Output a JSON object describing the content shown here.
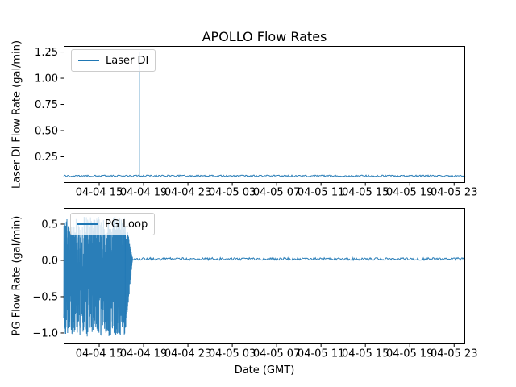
{
  "figure": {
    "line_color": "#1f77b4",
    "text_color": "#000000",
    "spine_color": "#000000",
    "legend_border_color": "#cccccc",
    "background_color": "#ffffff"
  },
  "chart_data": [
    {
      "type": "line",
      "title": "APOLLO Flow Rates",
      "ylabel": "Laser DI Flow Rate (gal/min)",
      "legend": {
        "label": "Laser DI",
        "location": "upper left"
      },
      "x_unit": "hours after 04-04 00:00 GMT",
      "xlim": [
        11.8,
        48.0
      ],
      "ylim": [
        0.0,
        1.308
      ],
      "grid": false,
      "xticks": {
        "values": [
          15,
          19,
          23,
          27,
          31,
          35,
          39,
          43,
          47
        ],
        "labels": [
          "04-04 15",
          "04-04 19",
          "04-04 23",
          "04-05 03",
          "04-05 07",
          "04-05 11",
          "04-05 15",
          "04-05 19",
          "04-05 23"
        ]
      },
      "yticks": {
        "values": [
          0.25,
          0.5,
          0.75,
          1.0,
          1.25
        ],
        "labels": [
          "0.25",
          "0.50",
          "0.75",
          "1.00",
          "1.25"
        ]
      },
      "series": [
        {
          "name": "Laser DI",
          "color": "#1f77b4",
          "description": "Constant baseline ~0.07 gal/min across the whole range with a single vertical spike to ~1.25 gal/min at about 04-04 18:40 GMT",
          "segments": [
            {
              "kind": "flat",
              "x_start": 11.8,
              "x_end": 48.0,
              "value": 0.068,
              "jitter": 0.008
            },
            {
              "kind": "spike",
              "x": 18.62,
              "base": 0.068,
              "peak": 1.25
            }
          ]
        }
      ]
    },
    {
      "type": "line",
      "ylabel": "PG Flow Rate (gal/min)",
      "xlabel": "Date (GMT)",
      "legend": {
        "label": "PG Loop",
        "location": "upper left"
      },
      "x_unit": "hours after 04-04 00:00 GMT",
      "xlim": [
        11.8,
        48.0
      ],
      "ylim": [
        -1.156,
        0.722
      ],
      "grid": false,
      "xticks": {
        "values": [
          15,
          19,
          23,
          27,
          31,
          35,
          39,
          43,
          47
        ],
        "labels": [
          "04-04 15",
          "04-04 19",
          "04-04 23",
          "04-05 03",
          "04-05 07",
          "04-05 11",
          "04-05 15",
          "04-05 19",
          "04-05 23"
        ]
      },
      "yticks": {
        "values": [
          0.5,
          0.0,
          -0.5,
          -1.0
        ],
        "labels": [
          "0.5",
          "0.0",
          "−0.5",
          "−1.0"
        ]
      },
      "series": [
        {
          "name": "PG Loop",
          "color": "#1f77b4",
          "description": "Dense noisy oscillation between about −1.05 and +0.6 gal/min from the start until ~04-04 17:20 GMT, tapering out by ~04-04 18:00, then steady at ~+0.02 gal/min to the end",
          "segments": [
            {
              "kind": "noise",
              "x_start": 11.8,
              "x_end": 17.35,
              "y_min": -1.05,
              "y_max": 0.6,
              "center": -0.2
            },
            {
              "kind": "taper",
              "x_start": 17.35,
              "x_end": 18.0,
              "y_min": -1.05,
              "y_max": 0.6,
              "center_from": -0.2,
              "end_value": 0.02
            },
            {
              "kind": "flat",
              "x_start": 18.0,
              "x_end": 48.0,
              "value": 0.02,
              "jitter": 0.018
            }
          ]
        }
      ]
    }
  ]
}
